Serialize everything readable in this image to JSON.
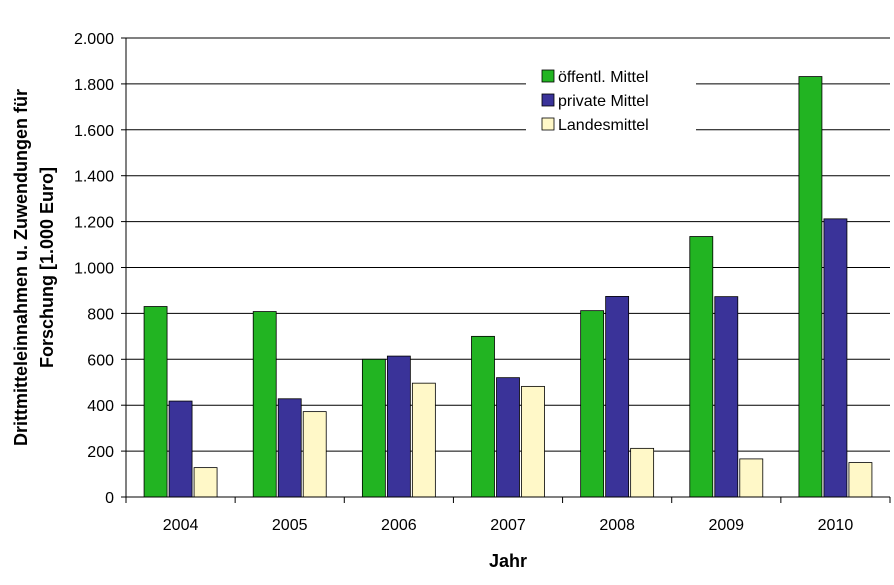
{
  "chart_data": {
    "type": "bar",
    "xlabel": "Jahr",
    "ylabel_line1": "Drittmitteleinnahmen u. Zuwendungen für",
    "ylabel_line2": "Forschung [1.000 Euro]",
    "categories": [
      "2004",
      "2005",
      "2006",
      "2007",
      "2008",
      "2009",
      "2010"
    ],
    "series": [
      {
        "name": "öffentl. Mittel",
        "color": "#22b422",
        "values": [
          830,
          808,
          600,
          700,
          812,
          1135,
          1832
        ]
      },
      {
        "name": "private Mittel",
        "color": "#3a3399",
        "values": [
          418,
          428,
          614,
          520,
          874,
          873,
          1212
        ]
      },
      {
        "name": "Landesmittel",
        "color": "#fff8c8",
        "values": [
          128,
          372,
          496,
          482,
          212,
          166,
          150
        ]
      }
    ],
    "ylim": [
      0,
      2000
    ],
    "yticks": [
      0,
      200,
      400,
      600,
      800,
      1000,
      1200,
      1400,
      1600,
      1800,
      2000
    ],
    "ytick_labels": [
      "0",
      "200",
      "400",
      "600",
      "800",
      "1.000",
      "1.200",
      "1.400",
      "1.600",
      "1.800",
      "2.000"
    ],
    "grid": true,
    "legend_position": "top-right"
  }
}
